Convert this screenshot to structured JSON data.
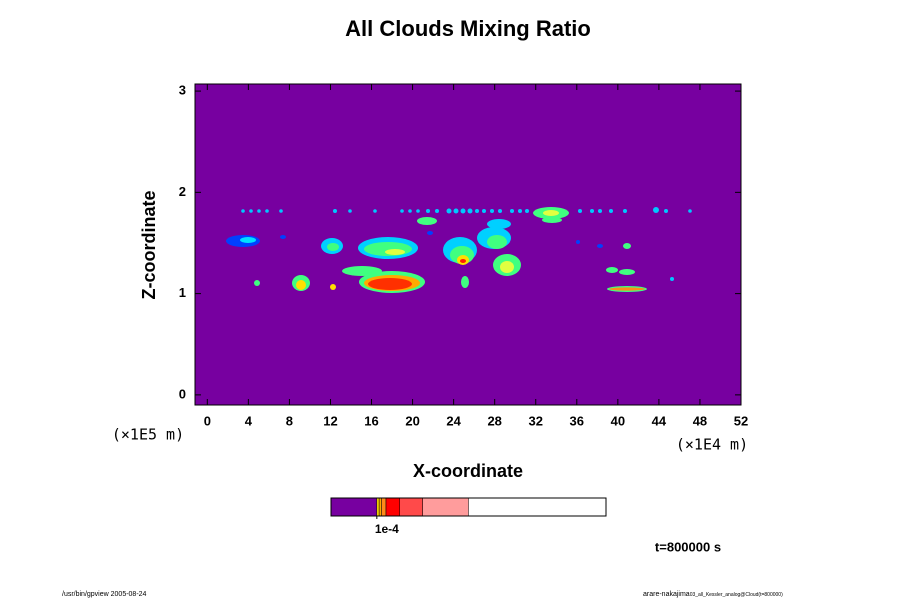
{
  "chart_data": {
    "type": "contour",
    "title": "All Clouds Mixing Ratio",
    "xlabel": "X-coordinate",
    "ylabel": "Z-coordinate",
    "x_unit_label": "(×1E4 m)",
    "y_unit_label": "(×1E5 m)",
    "xlim": [
      -1.2,
      52
    ],
    "ylim": [
      -0.1,
      3.07
    ],
    "xticks": [
      0,
      4,
      8,
      12,
      16,
      20,
      24,
      28,
      32,
      36,
      40,
      44,
      48,
      52
    ],
    "yticks": [
      0,
      1,
      2,
      3
    ],
    "background_color": "#7700a0",
    "colorbar": {
      "levels": [
        0,
        0.0001,
        0.000105,
        0.00011,
        0.00012,
        0.00015,
        0.0002,
        0.0003,
        0.0006
      ],
      "colors": [
        "#7700a0",
        "#ffe000",
        "#ffaa00",
        "#ff8a1a",
        "#ff0000",
        "#ff4a4a",
        "#ff9c9c"
      ],
      "ticks": [
        {
          "value": 0.0001,
          "label": "1e-4"
        }
      ]
    },
    "time_label": "t=800000 s",
    "footer_left": "/usr/bin/gpview 2005-08-24",
    "footer_right": "arare-nakajima",
    "footer_right_small": "03_all_Kessler_analog@Cloud(t=800000)"
  }
}
